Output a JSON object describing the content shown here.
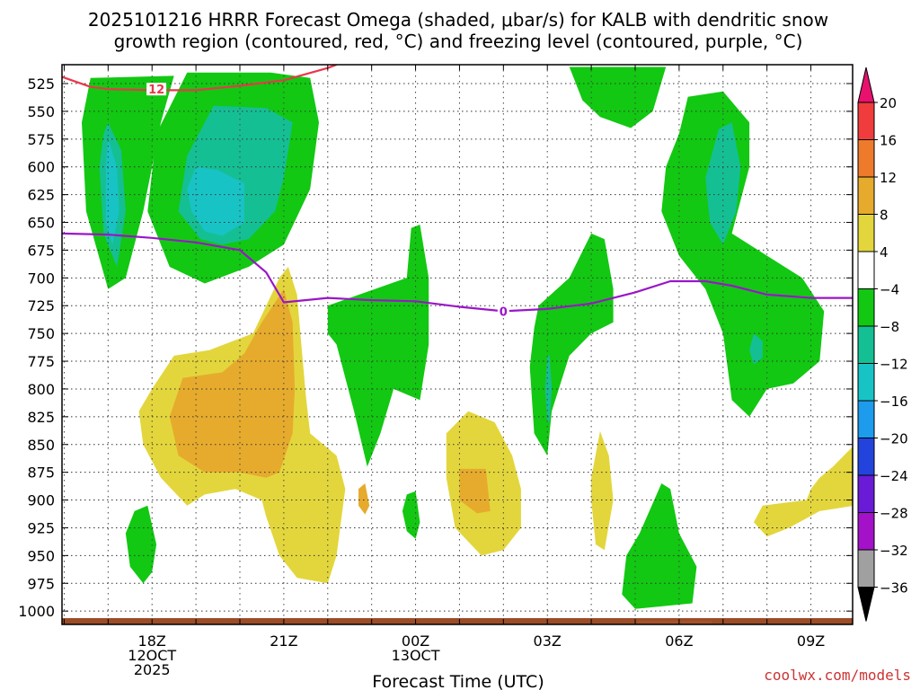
{
  "chart_data": {
    "type": "heatmap",
    "title_line1": "2025101216 HRRR Forecast Omega (shaded, μbar/s) for KALB with dendritic snow",
    "title_line2": "growth region (contoured, red, °C) and freezing level (contoured, purple, °C)",
    "xlabel": "Forecast Time (UTC)",
    "watermark": "coolwx.com/models",
    "x_ticks": [
      {
        "hour": 2,
        "lines": [
          "18Z",
          "12OCT",
          "2025"
        ]
      },
      {
        "hour": 5,
        "lines": [
          "21Z"
        ]
      },
      {
        "hour": 8,
        "lines": [
          "00Z",
          "13OCT"
        ]
      },
      {
        "hour": 11,
        "lines": [
          "03Z"
        ]
      },
      {
        "hour": 14,
        "lines": [
          "06Z"
        ]
      },
      {
        "hour": 17,
        "lines": [
          "09Z"
        ]
      }
    ],
    "xlim": [
      -0.05,
      17.95
    ],
    "ylim_hPa": [
      1012,
      508
    ],
    "y_ticks": [
      525,
      550,
      575,
      600,
      625,
      650,
      675,
      700,
      725,
      750,
      775,
      800,
      825,
      850,
      875,
      900,
      925,
      950,
      975,
      1000
    ],
    "colorbar": {
      "labels": [
        "20",
        "16",
        "12",
        "8",
        "4",
        "−4",
        "−8",
        "−12",
        "−16",
        "−20",
        "−24",
        "−28",
        "−32",
        "−36"
      ],
      "colors": [
        "#e8116e",
        "#f03c3c",
        "#ed7b2b",
        "#e6ab2d",
        "#e3d63c",
        "#ffffff",
        "#12c812",
        "#15bf94",
        "#18c3c6",
        "#1d9bed",
        "#2244dd",
        "#6a1bd6",
        "#a311c8",
        "#a0a0a0",
        "#000000"
      ]
    },
    "omega_shading": [
      {
        "level": -8,
        "color": "#12c812",
        "pts": [
          [
            0.6,
            520
          ],
          [
            2.5,
            518
          ],
          [
            2.2,
            560
          ],
          [
            1.8,
            640
          ],
          [
            1.4,
            700
          ],
          [
            1.0,
            710
          ],
          [
            0.5,
            640
          ],
          [
            0.4,
            560
          ]
        ]
      },
      {
        "level": -8,
        "color": "#12c812",
        "pts": [
          [
            2.8,
            515
          ],
          [
            4.7,
            515
          ],
          [
            5.6,
            520
          ],
          [
            5.8,
            560
          ],
          [
            5.6,
            620
          ],
          [
            5.0,
            670
          ],
          [
            4.2,
            690
          ],
          [
            3.2,
            705
          ],
          [
            2.4,
            690
          ],
          [
            1.9,
            640
          ],
          [
            2.1,
            570
          ]
        ]
      },
      {
        "level": -8,
        "color": "#12c812",
        "pts": [
          [
            11.5,
            510
          ],
          [
            13.7,
            510
          ],
          [
            13.4,
            550
          ],
          [
            12.9,
            565
          ],
          [
            12.2,
            555
          ],
          [
            11.8,
            540
          ]
        ]
      },
      {
        "level": -8,
        "color": "#12c812",
        "pts": [
          [
            14.2,
            537
          ],
          [
            15.0,
            532
          ],
          [
            15.6,
            560
          ],
          [
            15.6,
            600
          ],
          [
            15.2,
            660
          ],
          [
            16.0,
            680
          ],
          [
            16.8,
            700
          ],
          [
            17.3,
            730
          ],
          [
            17.2,
            775
          ],
          [
            16.6,
            795
          ],
          [
            16.0,
            800
          ],
          [
            15.6,
            825
          ],
          [
            15.2,
            810
          ],
          [
            15.0,
            750
          ],
          [
            14.6,
            710
          ],
          [
            14.0,
            680
          ],
          [
            13.6,
            640
          ],
          [
            13.7,
            600
          ],
          [
            14.0,
            570
          ]
        ]
      },
      {
        "level": -8,
        "color": "#12c812",
        "pts": [
          [
            6.0,
            725
          ],
          [
            7.8,
            700
          ],
          [
            7.9,
            655
          ],
          [
            8.1,
            652
          ],
          [
            8.3,
            700
          ],
          [
            8.3,
            760
          ],
          [
            8.1,
            810
          ],
          [
            7.5,
            800
          ],
          [
            7.2,
            840
          ],
          [
            6.9,
            870
          ],
          [
            6.6,
            820
          ],
          [
            6.2,
            760
          ],
          [
            6.0,
            750
          ]
        ]
      },
      {
        "level": -8,
        "color": "#12c812",
        "pts": [
          [
            10.8,
            725
          ],
          [
            11.5,
            700
          ],
          [
            12.0,
            660
          ],
          [
            12.3,
            665
          ],
          [
            12.5,
            710
          ],
          [
            12.5,
            740
          ],
          [
            12.0,
            750
          ],
          [
            11.5,
            770
          ],
          [
            11.1,
            820
          ],
          [
            11.0,
            860
          ],
          [
            10.7,
            840
          ],
          [
            10.6,
            780
          ],
          [
            10.7,
            745
          ]
        ]
      },
      {
        "level": -8,
        "color": "#12c812",
        "pts": [
          [
            13.6,
            885
          ],
          [
            13.8,
            890
          ],
          [
            14.0,
            930
          ],
          [
            14.4,
            960
          ],
          [
            14.3,
            993
          ],
          [
            13.0,
            998
          ],
          [
            12.7,
            985
          ],
          [
            12.8,
            950
          ],
          [
            13.1,
            930
          ]
        ]
      },
      {
        "level": -8,
        "color": "#12c812",
        "pts": [
          [
            1.6,
            910
          ],
          [
            1.9,
            905
          ],
          [
            2.1,
            940
          ],
          [
            2.0,
            965
          ],
          [
            1.8,
            975
          ],
          [
            1.5,
            960
          ],
          [
            1.4,
            930
          ]
        ]
      },
      {
        "level": -8,
        "color": "#12c812",
        "pts": [
          [
            7.8,
            895
          ],
          [
            8.0,
            892
          ],
          [
            8.1,
            920
          ],
          [
            8.0,
            935
          ],
          [
            7.8,
            928
          ],
          [
            7.7,
            910
          ]
        ]
      },
      {
        "level": -12,
        "color": "#15bf94",
        "pts": [
          [
            1.0,
            560
          ],
          [
            1.3,
            585
          ],
          [
            1.4,
            640
          ],
          [
            1.2,
            690
          ],
          [
            0.9,
            660
          ],
          [
            0.8,
            600
          ],
          [
            0.9,
            570
          ]
        ]
      },
      {
        "level": -12,
        "color": "#15bf94",
        "pts": [
          [
            3.4,
            545
          ],
          [
            4.6,
            547
          ],
          [
            5.2,
            560
          ],
          [
            5.0,
            610
          ],
          [
            4.8,
            640
          ],
          [
            4.2,
            665
          ],
          [
            3.6,
            670
          ],
          [
            3.1,
            665
          ],
          [
            2.6,
            640
          ],
          [
            2.8,
            590
          ]
        ]
      },
      {
        "level": -12,
        "color": "#15bf94",
        "pts": [
          [
            14.9,
            566
          ],
          [
            15.2,
            560
          ],
          [
            15.4,
            600
          ],
          [
            15.3,
            640
          ],
          [
            15.0,
            670
          ],
          [
            14.7,
            650
          ],
          [
            14.6,
            610
          ]
        ]
      },
      {
        "level": -12,
        "color": "#15bf94",
        "pts": [
          [
            15.7,
            750
          ],
          [
            15.9,
            757
          ],
          [
            15.9,
            772
          ],
          [
            15.7,
            778
          ],
          [
            15.6,
            765
          ]
        ]
      },
      {
        "level": -12,
        "color": "#15bf94",
        "pts": [
          [
            11.0,
            770
          ],
          [
            11.05,
            770
          ],
          [
            11.1,
            800
          ],
          [
            11.05,
            830
          ],
          [
            11.0,
            830
          ],
          [
            10.95,
            800
          ]
        ]
      },
      {
        "level": -16,
        "color": "#18c3c6",
        "pts": [
          [
            1.0,
            575
          ],
          [
            1.2,
            600
          ],
          [
            1.25,
            640
          ],
          [
            1.1,
            670
          ],
          [
            0.95,
            650
          ],
          [
            0.95,
            600
          ]
        ]
      },
      {
        "level": -16,
        "color": "#18c3c6",
        "pts": [
          [
            3.0,
            600
          ],
          [
            3.5,
            603
          ],
          [
            4.1,
            615
          ],
          [
            4.1,
            650
          ],
          [
            3.6,
            662
          ],
          [
            3.2,
            658
          ],
          [
            2.9,
            640
          ],
          [
            2.8,
            620
          ]
        ]
      },
      {
        "level": 4,
        "color": "#e3d63c",
        "pts": [
          [
            2.0,
            800
          ],
          [
            2.5,
            770
          ],
          [
            3.3,
            765
          ],
          [
            4.3,
            750
          ],
          [
            4.9,
            700
          ],
          [
            5.1,
            690
          ],
          [
            5.3,
            715
          ],
          [
            5.4,
            760
          ],
          [
            5.5,
            805
          ],
          [
            5.6,
            840
          ],
          [
            6.2,
            860
          ],
          [
            6.4,
            890
          ],
          [
            6.3,
            920
          ],
          [
            6.2,
            950
          ],
          [
            6.0,
            975
          ],
          [
            5.3,
            970
          ],
          [
            4.9,
            950
          ],
          [
            4.6,
            915
          ],
          [
            4.5,
            900
          ],
          [
            3.9,
            890
          ],
          [
            3.2,
            895
          ],
          [
            2.8,
            905
          ],
          [
            2.2,
            880
          ],
          [
            1.8,
            850
          ],
          [
            1.7,
            820
          ]
        ]
      },
      {
        "level": 4,
        "color": "#e3d63c",
        "pts": [
          [
            8.7,
            840
          ],
          [
            9.2,
            820
          ],
          [
            9.8,
            830
          ],
          [
            10.2,
            860
          ],
          [
            10.4,
            890
          ],
          [
            10.4,
            925
          ],
          [
            10.0,
            945
          ],
          [
            9.5,
            950
          ],
          [
            8.9,
            925
          ],
          [
            8.7,
            880
          ]
        ]
      },
      {
        "level": 4,
        "color": "#e3d63c",
        "pts": [
          [
            12.0,
            880
          ],
          [
            12.2,
            838
          ],
          [
            12.4,
            860
          ],
          [
            12.5,
            900
          ],
          [
            12.3,
            945
          ],
          [
            12.1,
            940
          ],
          [
            12.0,
            900
          ]
        ]
      },
      {
        "level": 4,
        "color": "#e3d63c",
        "pts": [
          [
            15.9,
            905
          ],
          [
            16.5,
            902
          ],
          [
            16.9,
            900
          ],
          [
            17.0,
            890
          ],
          [
            17.2,
            880
          ],
          [
            17.5,
            870
          ],
          [
            18.0,
            850
          ],
          [
            18.0,
            905
          ],
          [
            17.2,
            910
          ],
          [
            16.5,
            925
          ],
          [
            16.0,
            933
          ],
          [
            15.7,
            920
          ]
        ]
      },
      {
        "level": 8,
        "color": "#e6ab2d",
        "pts": [
          [
            2.7,
            790
          ],
          [
            3.6,
            785
          ],
          [
            4.1,
            768
          ],
          [
            4.5,
            740
          ],
          [
            5.0,
            710
          ],
          [
            5.2,
            740
          ],
          [
            5.25,
            800
          ],
          [
            5.2,
            840
          ],
          [
            4.9,
            875
          ],
          [
            4.6,
            880
          ],
          [
            4.0,
            875
          ],
          [
            3.2,
            875
          ],
          [
            2.6,
            860
          ],
          [
            2.4,
            825
          ]
        ]
      },
      {
        "level": 8,
        "color": "#e6ab2d",
        "pts": [
          [
            6.7,
            890
          ],
          [
            6.85,
            885
          ],
          [
            6.95,
            905
          ],
          [
            6.85,
            913
          ],
          [
            6.7,
            905
          ]
        ]
      },
      {
        "level": 8,
        "color": "#e6ab2d",
        "pts": [
          [
            9.0,
            872
          ],
          [
            9.6,
            872
          ],
          [
            9.7,
            910
          ],
          [
            9.4,
            912
          ],
          [
            9.0,
            900
          ]
        ]
      }
    ],
    "freezing_level": {
      "label": "0",
      "label_at": [
        10.0,
        730
      ],
      "color": "#9a16c8",
      "x": [
        -0.05,
        1.0,
        2.0,
        3.0,
        4.0,
        4.6,
        5.0,
        6.0,
        7.0,
        8.0,
        9.0,
        10.0,
        11.0,
        12.0,
        13.0,
        13.8,
        14.6,
        15.2,
        16.0,
        17.0,
        17.95
      ],
      "y": [
        660,
        661,
        664,
        668,
        675,
        695,
        722,
        718,
        720,
        721,
        726,
        730,
        728,
        723,
        713,
        703,
        703,
        707,
        715,
        718,
        718
      ]
    },
    "dendritic_region": {
      "label": "12",
      "label_at": [
        2.1,
        530
      ],
      "color": "#e8384a",
      "x": [
        -0.05,
        0.6,
        1.0,
        2.0,
        3.0,
        4.0,
        5.0,
        6.0,
        6.2
      ],
      "y": [
        519,
        528,
        530,
        531,
        531,
        527,
        522,
        511,
        508
      ]
    },
    "surface_bars": [
      {
        "from": -0.05,
        "to": 17.95,
        "color": "#9b4d28"
      },
      {
        "from": 13.05,
        "to": 14.75,
        "color": "#a6522b"
      }
    ]
  }
}
